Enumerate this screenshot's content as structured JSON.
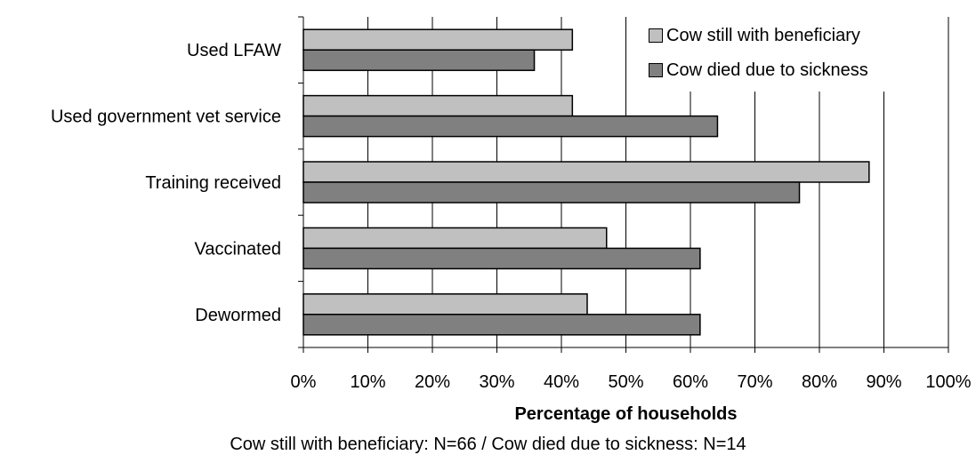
{
  "chart_data": {
    "type": "bar",
    "orientation": "horizontal",
    "categories": [
      "Used LFAW",
      "Used government vet service",
      "Training received",
      "Vaccinated",
      "Dewormed"
    ],
    "series": [
      {
        "name": "Cow still with beneficiary",
        "color": "#c0c0c0",
        "values": [
          41.7,
          41.7,
          87.7,
          47.0,
          44.0
        ]
      },
      {
        "name": "Cow died due to sickness",
        "color": "#808080",
        "values": [
          35.8,
          64.2,
          76.9,
          61.5,
          61.5
        ]
      }
    ],
    "x_ticks": [
      "0%",
      "10%",
      "20%",
      "30%",
      "40%",
      "50%",
      "60%",
      "70%",
      "80%",
      "90%",
      "100%"
    ],
    "xlim": [
      0,
      100
    ],
    "xlabel": "Percentage of households",
    "footnote": "Cow still with beneficiary: N=66 / Cow died due to sickness: N=14",
    "grid": "vertical",
    "legend_position": "top-right"
  }
}
